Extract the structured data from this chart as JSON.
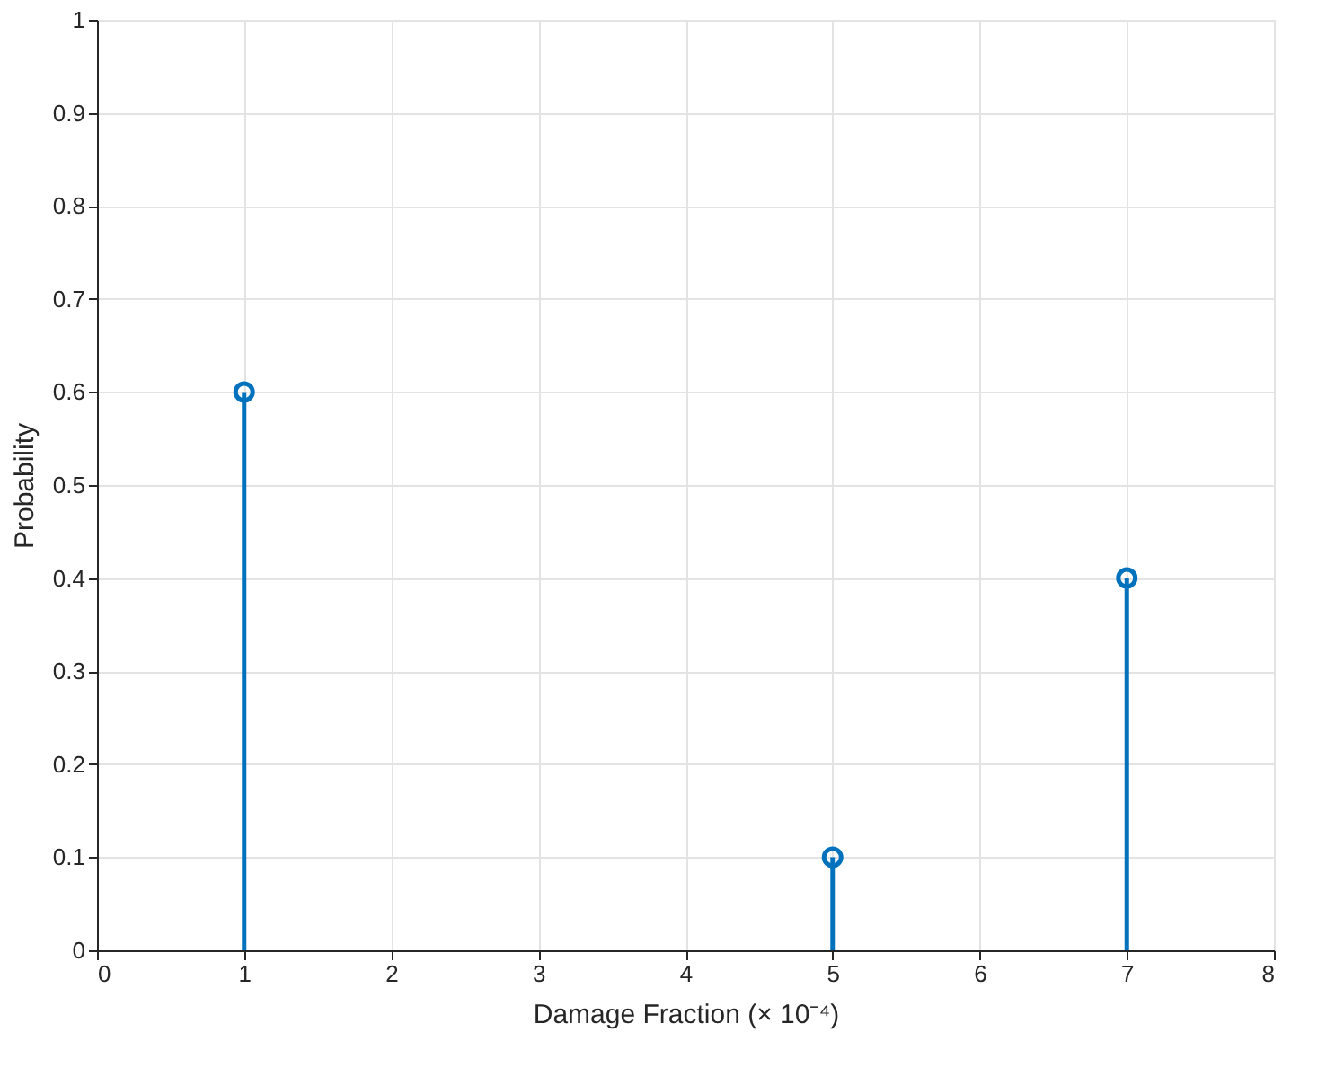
{
  "chart_data": {
    "type": "lollipop",
    "xlabel": "Damage Fraction (× 10⁻⁴)",
    "ylabel": "Probability",
    "x": [
      1,
      5,
      7
    ],
    "series": [
      {
        "color": "#0072bd",
        "values": [
          0.6,
          0.1,
          0.4
        ]
      }
    ],
    "xlim": [
      0,
      8
    ],
    "xticks": [
      0,
      1,
      2,
      3,
      4,
      5,
      6,
      7,
      8
    ],
    "ylim": [
      0,
      1
    ],
    "yticks": [
      0,
      0.1,
      0.2,
      0.3,
      0.4,
      0.5,
      0.6,
      0.7,
      0.8,
      0.9,
      1
    ],
    "grid": true,
    "marker": "circle"
  }
}
